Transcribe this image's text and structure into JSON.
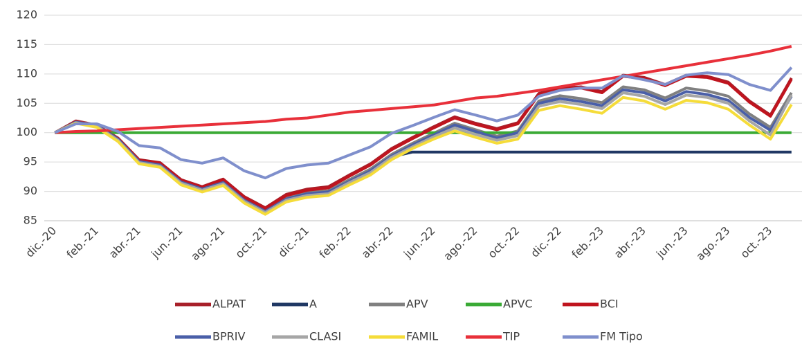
{
  "chart_data": {
    "type": "line",
    "categories": [
      "dic.-20",
      null,
      "feb.-21",
      null,
      "abr.-21",
      null,
      "jun.-21",
      null,
      "ago.-21",
      null,
      "oct.-21",
      null,
      "dic.-21",
      null,
      "feb.-22",
      null,
      "abr.-22",
      null,
      "jun.-22",
      null,
      "ago.-22",
      null,
      "oct.-22",
      null,
      "dic.-22",
      null,
      "feb.-23",
      null,
      "abr.-23",
      null,
      "jun.-23",
      null,
      "ago.-23",
      null,
      "oct.-23",
      null
    ],
    "ylim": [
      85,
      120
    ],
    "yticks": [
      85,
      90,
      95,
      100,
      105,
      110,
      115,
      120
    ],
    "grid": true,
    "legend": "bottom",
    "series": [
      {
        "name": "ALPAT",
        "color": "#a8202a",
        "values": [
          100,
          102,
          101.3,
          99.1,
          95.4,
          94.9,
          92,
          90.8,
          92.1,
          89.1,
          87.2,
          89.5,
          90.4,
          90.8,
          92.8,
          94.7,
          97.3,
          99.2,
          101,
          102.7,
          101.6,
          100.7,
          101.7,
          106.7,
          107.6,
          107.8,
          107,
          109.8,
          109.4,
          108.2,
          109.8,
          109.6,
          108.6,
          105.4,
          103,
          109.3
        ]
      },
      {
        "name": "A",
        "color": "#203864",
        "values": [
          100,
          101.8,
          101.3,
          99,
          95.2,
          94.6,
          91.6,
          90.4,
          91.5,
          88.6,
          86.6,
          88.7,
          89.6,
          89.9,
          91.8,
          93.5,
          95.9,
          96.7,
          96.7,
          96.7,
          96.7,
          96.7,
          96.7,
          96.7,
          96.7,
          96.7,
          96.7,
          96.7,
          96.7,
          96.7,
          96.7,
          96.7,
          96.7,
          96.7,
          96.7,
          96.7
        ]
      },
      {
        "name": "APV",
        "color": "#808080",
        "values": [
          100,
          101.9,
          101.3,
          99,
          95.3,
          94.7,
          91.8,
          90.6,
          91.7,
          88.7,
          86.8,
          88.9,
          89.8,
          90.1,
          92,
          93.8,
          96.3,
          98.2,
          99.9,
          101.6,
          100.5,
          99.4,
          100.3,
          105.4,
          106.3,
          105.8,
          105.1,
          107.8,
          107.3,
          105.9,
          107.6,
          107.1,
          106.2,
          103.2,
          100.9,
          106.8
        ]
      },
      {
        "name": "APVC",
        "color": "#3aaa35",
        "values": [
          100,
          100,
          100,
          100,
          100,
          100,
          100,
          100,
          100,
          100,
          100,
          100,
          100,
          100,
          100,
          100,
          100,
          100,
          100,
          100,
          100,
          100,
          100,
          100,
          100,
          100,
          100,
          100,
          100,
          100,
          100,
          100,
          100,
          100,
          100,
          100
        ]
      },
      {
        "name": "BCI",
        "color": "#c0141e",
        "values": [
          100,
          101.9,
          101.2,
          99,
          95.3,
          94.8,
          91.9,
          90.7,
          92,
          89,
          87.1,
          89.3,
          90.2,
          90.6,
          92.6,
          94.5,
          97.1,
          99,
          100.8,
          102.5,
          101.4,
          100.5,
          101.5,
          106.5,
          107.4,
          107.6,
          106.8,
          109.6,
          109.2,
          108,
          109.6,
          109.4,
          108.4,
          105.2,
          102.8,
          109.1
        ]
      },
      {
        "name": "BPRIV",
        "color": "#4a5fa8",
        "values": [
          100,
          101.8,
          101.2,
          98.9,
          95.1,
          94.5,
          91.6,
          90.4,
          91.5,
          88.5,
          86.6,
          88.7,
          89.6,
          89.9,
          91.7,
          93.5,
          96,
          97.9,
          99.6,
          101.3,
          100.2,
          99.1,
          100,
          105,
          105.8,
          105.3,
          104.6,
          107.3,
          106.8,
          105.4,
          107,
          106.5,
          105.5,
          102.6,
          100.4,
          106.2
        ]
      },
      {
        "name": "CLASI",
        "color": "#a6a6a6",
        "values": [
          100,
          101.7,
          101.1,
          98.7,
          94.9,
          94.3,
          91.4,
          90.2,
          91.3,
          88.3,
          86.4,
          88.5,
          89.3,
          89.6,
          91.5,
          93.2,
          95.8,
          97.6,
          99.3,
          100.8,
          99.7,
          98.7,
          99.5,
          104.5,
          105.3,
          104.8,
          104.1,
          106.8,
          106.2,
          104.8,
          106.4,
          106,
          105,
          102,
          99.6,
          106.4
        ]
      },
      {
        "name": "FAMIL",
        "color": "#f5dc3a",
        "values": [
          100,
          101.6,
          100.9,
          98.5,
          94.7,
          94.1,
          91.1,
          89.9,
          91,
          88,
          86.1,
          88.2,
          89,
          89.3,
          91.1,
          92.8,
          95.4,
          97.3,
          98.9,
          100.3,
          99.2,
          98.2,
          98.9,
          103.8,
          104.6,
          104,
          103.3,
          106,
          105.4,
          104,
          105.5,
          105.1,
          104,
          101.3,
          98.9,
          104.8
        ]
      },
      {
        "name": "TIP",
        "color": "#e8303a",
        "values": [
          100,
          100.2,
          100.3,
          100.5,
          100.7,
          100.9,
          101.1,
          101.3,
          101.5,
          101.7,
          101.9,
          102.3,
          102.5,
          103,
          103.5,
          103.8,
          104.1,
          104.4,
          104.7,
          105.3,
          105.9,
          106.2,
          106.7,
          107.2,
          107.8,
          108.4,
          109,
          109.6,
          110.2,
          110.8,
          111.4,
          112,
          112.6,
          113.2,
          113.9,
          114.7
        ]
      },
      {
        "name": "FM Tipo",
        "color": "#7f8fcc",
        "values": [
          100,
          101.5,
          101.5,
          100.2,
          97.8,
          97.4,
          95.4,
          94.8,
          95.7,
          93.5,
          92.3,
          93.9,
          94.5,
          94.8,
          96.2,
          97.6,
          99.9,
          101.2,
          102.6,
          103.9,
          103,
          102,
          103,
          106.2,
          107.2,
          107.6,
          107.6,
          109.7,
          109,
          108.2,
          109.8,
          110.2,
          109.9,
          108.2,
          107.2,
          111.1
        ]
      }
    ]
  }
}
